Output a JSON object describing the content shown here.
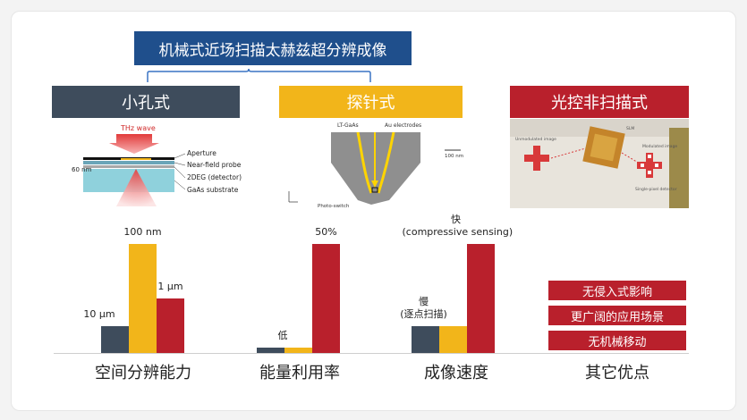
{
  "title": "机械式近场扫描太赫兹超分辨成像",
  "categories": [
    {
      "label": "小孔式",
      "color": "#3e4c5c"
    },
    {
      "label": "探针式",
      "color": "#f2b51a"
    },
    {
      "label": "光控非扫描式",
      "color": "#b9202c"
    }
  ],
  "aperture_diagram": {
    "thz_wave": "THz wave",
    "aperture": "Aperture",
    "probe": "Near-field probe",
    "detector": "2DEG (detector)",
    "substrate": "GaAs substrate",
    "thickness": "60 nm"
  },
  "probe_diagram": {
    "lt_gaas": "LT-GaAs",
    "electrodes": "Au electrodes",
    "scale": "100 nm",
    "switch": "Photo-switch"
  },
  "optical_diagram": {
    "label1": "Unmodulated image",
    "label2": "SLM",
    "label3": "Modulated image",
    "label4": "Single-pixel detector"
  },
  "metrics": [
    "空间分辨能力",
    "能量利用率",
    "成像速度",
    "其它优点"
  ],
  "chart_data": {
    "type": "bar",
    "categories": [
      "空间分辨能力",
      "能量利用率",
      "成像速度"
    ],
    "series": [
      {
        "values": [
          1,
          0.2,
          1
        ],
        "labels": [
          "10 μm",
          "",
          "慢\n(逐点扫描)"
        ],
        "color": "#3e4c5c"
      },
      {
        "values": [
          4,
          0.2,
          1
        ],
        "labels": [
          "100 nm",
          "低",
          ""
        ],
        "color": "#f2b51a"
      },
      {
        "values": [
          2,
          4,
          4
        ],
        "labels": [
          "1 μm",
          "50%",
          "快\n(compressive sensing)"
        ],
        "color": "#b9202c"
      }
    ]
  },
  "advantages": [
    "无侵入式影响",
    "更广阔的应用场景",
    "无机械移动"
  ]
}
